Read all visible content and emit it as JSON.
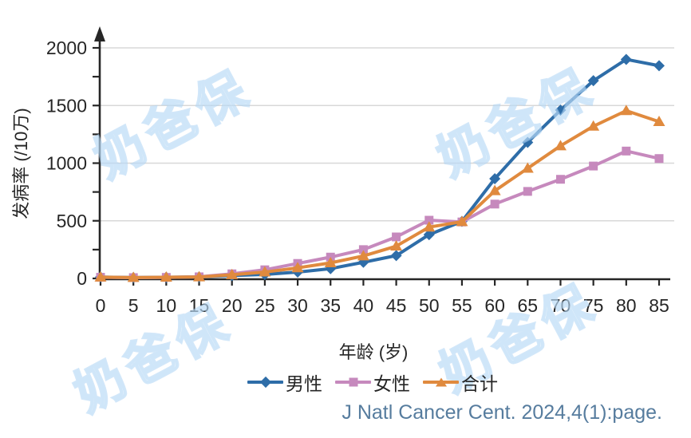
{
  "watermark": {
    "text": "奶爸保"
  },
  "source": {
    "citation": "J Natl Cancer Cent. 2024,4(1):page."
  },
  "chart_data": {
    "type": "line",
    "title": "",
    "xlabel": "年龄 (岁)",
    "ylabel": "发病率 (/10万)",
    "x": [
      0,
      5,
      10,
      15,
      20,
      25,
      30,
      35,
      40,
      45,
      50,
      55,
      60,
      65,
      70,
      75,
      80,
      85
    ],
    "xlim": [
      0,
      85
    ],
    "ylim": [
      0,
      2000
    ],
    "y_ticks": [
      0,
      500,
      1000,
      1500,
      2000
    ],
    "y_minor_tick_step": 250,
    "grid": "horizontal",
    "legend_position": "bottom",
    "axis_color": "#262626",
    "grid_color": "#D8D8D8",
    "series": [
      {
        "name": "男性",
        "marker": "diamond",
        "color": "#2E6DA8",
        "values": [
          12,
          8,
          10,
          13,
          25,
          35,
          55,
          85,
          140,
          198,
          380,
          495,
          865,
          1180,
          1460,
          1715,
          1900,
          1845
        ]
      },
      {
        "name": "女性",
        "marker": "square",
        "color": "#C689BD",
        "values": [
          10,
          7,
          9,
          14,
          40,
          75,
          130,
          185,
          250,
          360,
          505,
          490,
          645,
          755,
          860,
          975,
          1105,
          1040
        ]
      },
      {
        "name": "合计",
        "marker": "triangle",
        "color": "#E08A3E",
        "values": [
          11,
          8,
          10,
          13,
          32,
          55,
          92,
          135,
          195,
          280,
          445,
          492,
          760,
          955,
          1150,
          1320,
          1455,
          1360
        ]
      }
    ]
  }
}
